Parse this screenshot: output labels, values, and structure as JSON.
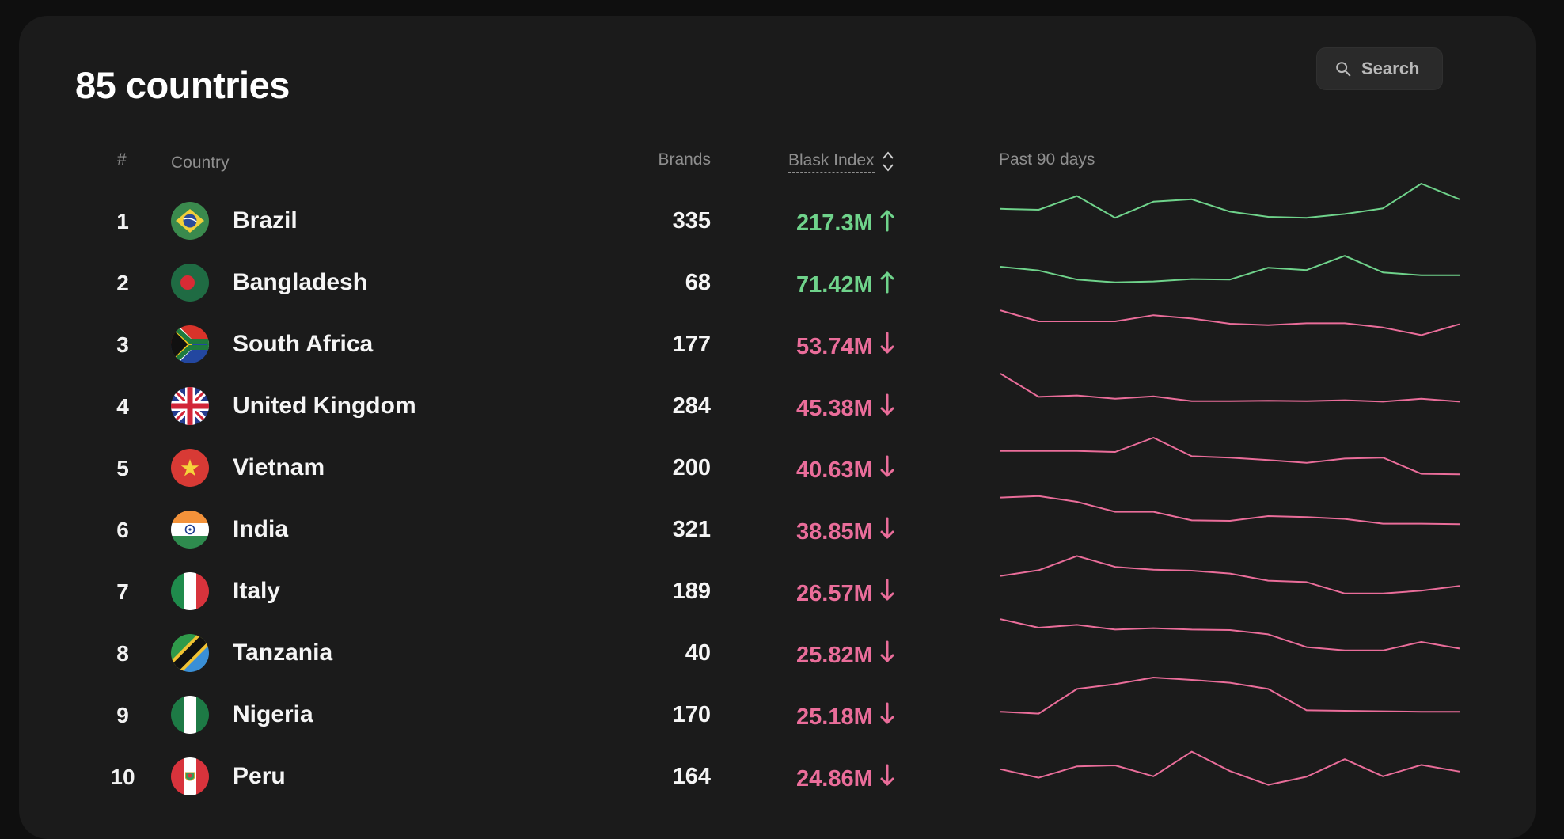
{
  "header": {
    "title": "85 countries",
    "search_label": "Search"
  },
  "columns": {
    "rank": "#",
    "country": "Country",
    "brands": "Brands",
    "index": "Blask Index",
    "trend": "Past 90 days"
  },
  "colors": {
    "up": "#6fd38b",
    "down": "#ea6d9a"
  },
  "rows": [
    {
      "rank": "1",
      "country": "Brazil",
      "flag": "brazil-flag-icon",
      "brands": "335",
      "index": "217.3M",
      "direction": "up",
      "trend": [
        0.47,
        0.45,
        0.74,
        0.28,
        0.62,
        0.67,
        0.41,
        0.3,
        0.28,
        0.36,
        0.48,
        1.0,
        0.67
      ]
    },
    {
      "rank": "2",
      "country": "Bangladesh",
      "flag": "bangladesh-flag-icon",
      "brands": "68",
      "index": "71.42M",
      "direction": "up",
      "trend": [
        0.55,
        0.47,
        0.28,
        0.22,
        0.24,
        0.29,
        0.28,
        0.53,
        0.48,
        0.78,
        0.43,
        0.37,
        0.37
      ]
    },
    {
      "rank": "3",
      "country": "South Africa",
      "flag": "south-africa-flag-icon",
      "brands": "177",
      "index": "53.74M",
      "direction": "down",
      "trend": [
        0.93,
        0.7,
        0.7,
        0.7,
        0.83,
        0.76,
        0.65,
        0.62,
        0.66,
        0.66,
        0.57,
        0.41,
        0.64
      ]
    },
    {
      "rank": "4",
      "country": "United Kingdom",
      "flag": "uk-flag-icon",
      "brands": "284",
      "index": "45.38M",
      "direction": "down",
      "trend": [
        0.9,
        0.41,
        0.44,
        0.37,
        0.42,
        0.32,
        0.32,
        0.33,
        0.32,
        0.34,
        0.31,
        0.37,
        0.31
      ]
    },
    {
      "rank": "5",
      "country": "Vietnam",
      "flag": "vietnam-flag-icon",
      "brands": "200",
      "index": "40.63M",
      "direction": "down",
      "trend": [
        0.57,
        0.57,
        0.57,
        0.55,
        0.85,
        0.46,
        0.43,
        0.38,
        0.32,
        0.41,
        0.43,
        0.09,
        0.08
      ]
    },
    {
      "rank": "6",
      "country": "India",
      "flag": "india-flag-icon",
      "brands": "321",
      "index": "38.85M",
      "direction": "down",
      "trend": [
        0.89,
        0.92,
        0.8,
        0.59,
        0.59,
        0.41,
        0.4,
        0.5,
        0.48,
        0.44,
        0.34,
        0.34,
        0.33
      ]
    },
    {
      "rank": "7",
      "country": "Italy",
      "flag": "italy-flag-icon",
      "brands": "189",
      "index": "26.57M",
      "direction": "down",
      "trend": [
        0.54,
        0.66,
        0.96,
        0.73,
        0.67,
        0.65,
        0.59,
        0.44,
        0.41,
        0.17,
        0.17,
        0.23,
        0.33
      ]
    },
    {
      "rank": "8",
      "country": "Tanzania",
      "flag": "tanzania-flag-icon",
      "brands": "40",
      "index": "25.82M",
      "direction": "down",
      "trend": [
        0.93,
        0.75,
        0.81,
        0.71,
        0.74,
        0.71,
        0.7,
        0.61,
        0.34,
        0.27,
        0.27,
        0.45,
        0.31
      ]
    },
    {
      "rank": "9",
      "country": "Nigeria",
      "flag": "nigeria-flag-icon",
      "brands": "170",
      "index": "25.18M",
      "direction": "down",
      "trend": [
        0.28,
        0.24,
        0.76,
        0.86,
        1.0,
        0.95,
        0.89,
        0.76,
        0.31,
        0.3,
        0.29,
        0.28,
        0.28
      ]
    },
    {
      "rank": "10",
      "country": "Peru",
      "flag": "peru-flag-icon",
      "brands": "164",
      "index": "24.86M",
      "direction": "down",
      "trend": [
        0.37,
        0.19,
        0.43,
        0.45,
        0.22,
        0.74,
        0.33,
        0.04,
        0.21,
        0.58,
        0.22,
        0.46,
        0.32
      ]
    }
  ]
}
